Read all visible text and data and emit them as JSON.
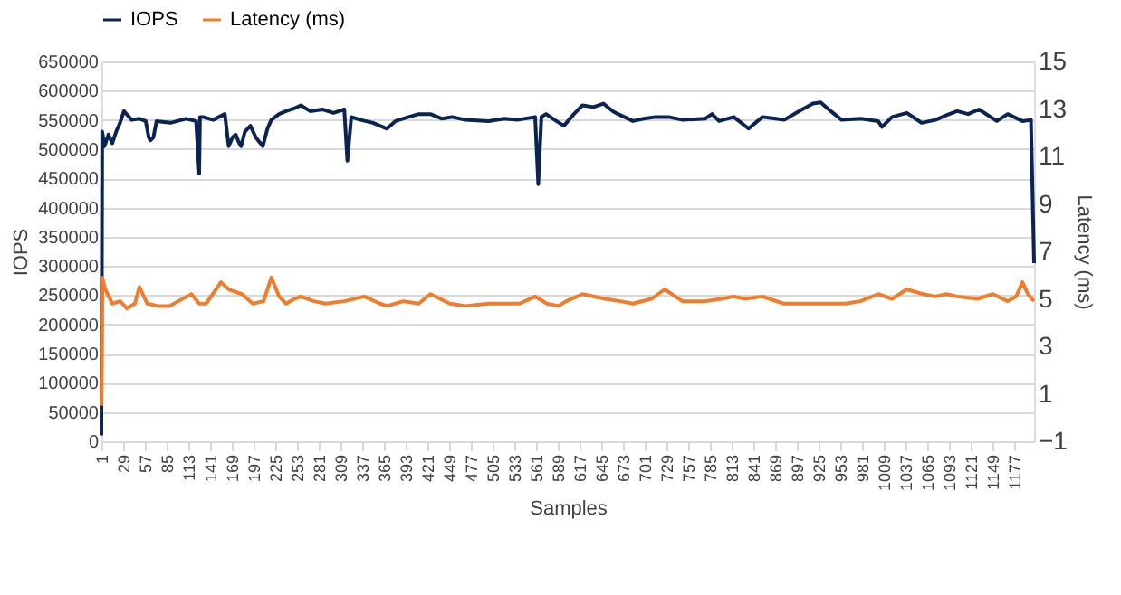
{
  "chart_data": {
    "type": "line",
    "xlabel": "Samples",
    "ylabel": "IOPS",
    "y2label": "Latency (ms)",
    "xlim": [
      1,
      1203
    ],
    "xticks": [
      1,
      29,
      57,
      85,
      113,
      141,
      169,
      197,
      225,
      253,
      281,
      309,
      337,
      365,
      393,
      421,
      449,
      477,
      505,
      533,
      561,
      589,
      617,
      645,
      673,
      701,
      729,
      757,
      785,
      813,
      841,
      869,
      897,
      925,
      953,
      981,
      1009,
      1037,
      1065,
      1093,
      1121,
      1149,
      1177
    ],
    "ylim": [
      0,
      650000
    ],
    "yticks": [
      0,
      50000,
      100000,
      150000,
      200000,
      250000,
      300000,
      350000,
      400000,
      450000,
      500000,
      550000,
      600000,
      650000
    ],
    "y2lim": [
      -1,
      15
    ],
    "y2ticks": [
      -1,
      1,
      3,
      5,
      7,
      9,
      11,
      13,
      15
    ],
    "grid": "y",
    "legend": "top",
    "series": [
      {
        "name": "IOPS",
        "color": "#0b2350",
        "x": [
          1,
          2,
          5,
          10,
          15,
          20,
          25,
          30,
          40,
          50,
          58,
          62,
          64,
          68,
          72,
          90,
          110,
          123,
          127,
          128,
          132,
          145,
          160,
          165,
          170,
          174,
          178,
          181,
          186,
          193,
          200,
          209,
          215,
          220,
          230,
          239,
          250,
          258,
          270,
          286,
          300,
          314,
          318,
          323,
          335,
          351,
          360,
          369,
          380,
          397,
          410,
          425,
          440,
          453,
          470,
          500,
          520,
          537,
          560,
          564,
          568,
          574,
          585,
          597,
          610,
          621,
          635,
          648,
          660,
          667,
          686,
          700,
          715,
          732,
          750,
          779,
          788,
          797,
          816,
          835,
          853,
          870,
          881,
          900,
          918,
          928,
          941,
          955,
          980,
          1002,
          1007,
          1020,
          1039,
          1058,
          1076,
          1090,
          1104,
          1118,
          1132,
          1155,
          1169,
          1188,
          1199,
          1203
        ],
        "values": [
          10000,
          530000,
          505000,
          525000,
          510000,
          530000,
          545000,
          565000,
          550000,
          552000,
          548000,
          520000,
          515000,
          520000,
          548000,
          545000,
          552000,
          548000,
          458000,
          555000,
          555000,
          550000,
          560000,
          505000,
          520000,
          525000,
          512000,
          505000,
          530000,
          540000,
          520000,
          505000,
          535000,
          550000,
          560000,
          565000,
          570000,
          575000,
          565000,
          568000,
          562000,
          568000,
          480000,
          555000,
          550000,
          545000,
          540000,
          535000,
          548000,
          555000,
          560000,
          560000,
          552000,
          555000,
          550000,
          548000,
          552000,
          550000,
          555000,
          440000,
          555000,
          560000,
          550000,
          540000,
          560000,
          575000,
          572000,
          578000,
          565000,
          560000,
          548000,
          552000,
          555000,
          555000,
          550000,
          552000,
          560000,
          548000,
          555000,
          535000,
          555000,
          552000,
          550000,
          565000,
          578000,
          580000,
          565000,
          550000,
          552000,
          548000,
          538000,
          555000,
          562000,
          545000,
          550000,
          558000,
          565000,
          560000,
          568000,
          548000,
          560000,
          548000,
          550000,
          305000
        ]
      },
      {
        "name": "Latency (ms)",
        "color": "#ef7d2c",
        "axis": "y2",
        "x": [
          1,
          2,
          6,
          15,
          25,
          34,
          44,
          50,
          60,
          74,
          89,
          100,
          117,
          127,
          136,
          155,
          165,
          182,
          196,
          210,
          220,
          230,
          239,
          250,
          258,
          275,
          290,
          314,
          340,
          360,
          369,
          390,
          410,
          425,
          450,
          470,
          500,
          540,
          560,
          575,
          590,
          600,
          621,
          650,
          670,
          686,
          710,
          727,
          750,
          779,
          800,
          816,
          830,
          853,
          880,
          900,
          928,
          960,
          979,
          1002,
          1020,
          1039,
          1060,
          1076,
          1090,
          1104,
          1130,
          1150,
          1169,
          1180,
          1188,
          1195,
          1203
        ],
        "values": [
          0.5,
          5.9,
          5.4,
          4.8,
          4.9,
          4.6,
          4.8,
          5.5,
          4.8,
          4.7,
          4.7,
          4.9,
          5.2,
          4.8,
          4.8,
          5.7,
          5.4,
          5.2,
          4.8,
          4.9,
          5.9,
          5.1,
          4.8,
          5.0,
          5.1,
          4.9,
          4.8,
          4.9,
          5.1,
          4.8,
          4.7,
          4.9,
          4.8,
          5.2,
          4.8,
          4.7,
          4.8,
          4.8,
          5.1,
          4.8,
          4.7,
          4.9,
          5.2,
          5.0,
          4.9,
          4.8,
          5.0,
          5.4,
          4.9,
          4.9,
          5.0,
          5.1,
          5.0,
          5.1,
          4.8,
          4.8,
          4.8,
          4.8,
          4.9,
          5.2,
          5.0,
          5.4,
          5.2,
          5.1,
          5.2,
          5.1,
          5.0,
          5.2,
          4.9,
          5.1,
          5.7,
          5.2,
          4.9
        ]
      }
    ]
  }
}
